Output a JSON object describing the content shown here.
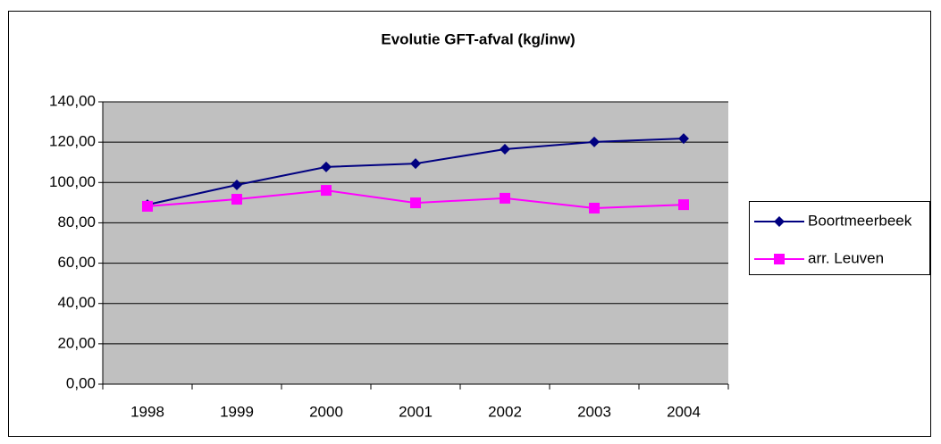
{
  "chart_data": {
    "type": "line",
    "title": "Evolutie GFT-afval (kg/inw)",
    "categories": [
      "1998",
      "1999",
      "2000",
      "2001",
      "2002",
      "2003",
      "2004"
    ],
    "series": [
      {
        "name": "Boortmeerbeek",
        "color": "#000080",
        "marker": "diamond",
        "values": [
          89.0,
          98.8,
          107.7,
          109.4,
          116.5,
          120.1,
          121.8
        ]
      },
      {
        "name": "arr. Leuven",
        "color": "#ff00ff",
        "marker": "square",
        "values": [
          88.2,
          91.7,
          96.1,
          89.9,
          92.2,
          87.3,
          89.0
        ]
      }
    ],
    "ylim": [
      0,
      140
    ],
    "yticks": [
      {
        "value": 0,
        "label": "0,00"
      },
      {
        "value": 20,
        "label": "20,00"
      },
      {
        "value": 40,
        "label": "40,00"
      },
      {
        "value": 60,
        "label": "60,00"
      },
      {
        "value": 80,
        "label": "80,00"
      },
      {
        "value": 100,
        "label": "100,00"
      },
      {
        "value": 120,
        "label": "120,00"
      },
      {
        "value": 140,
        "label": "140,00"
      }
    ],
    "grid": true,
    "legend": "right",
    "plot_background": "#c0c0c0"
  }
}
